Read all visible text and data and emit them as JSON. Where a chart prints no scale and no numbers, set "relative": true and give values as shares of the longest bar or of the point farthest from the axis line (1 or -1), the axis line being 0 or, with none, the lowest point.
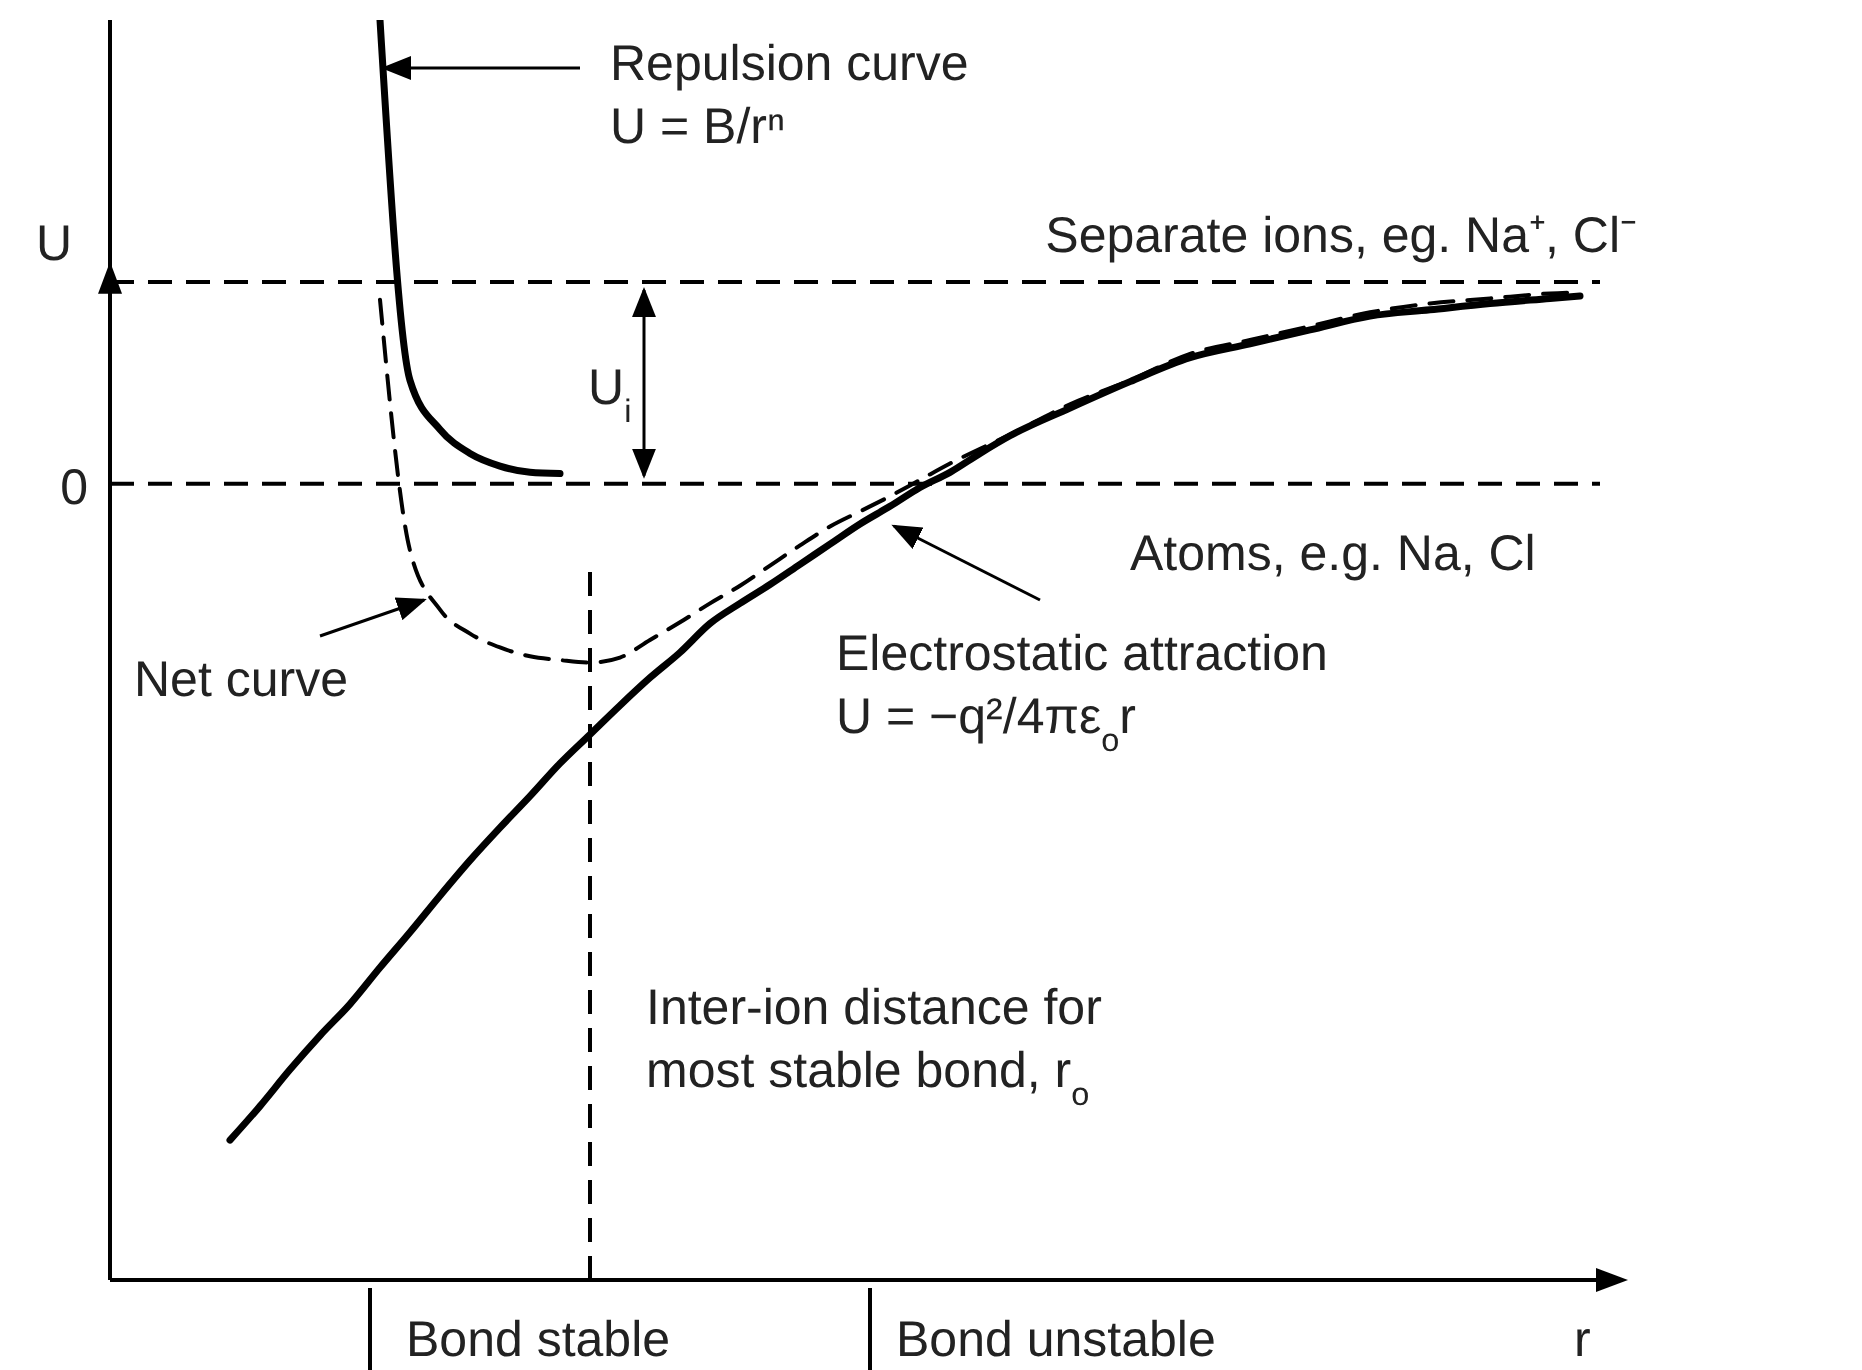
{
  "chart_data": {
    "type": "line",
    "relative": true,
    "xlabel": "r",
    "ylabel": "U",
    "marker": "none",
    "categories": [
      null,
      null,
      null,
      null,
      null,
      null,
      null,
      null,
      null,
      null,
      null,
      null,
      null,
      null,
      null,
      null,
      null,
      null,
      null,
      null,
      null,
      null,
      null,
      null,
      null,
      null,
      null,
      null,
      null,
      null,
      null,
      null,
      null,
      null,
      null,
      null,
      null,
      null,
      null,
      null,
      null,
      null,
      null,
      null,
      null,
      null,
      null,
      null,
      null,
      null
    ],
    "series": [
      {
        "color": "#000000",
        "line_style": "solid",
        "values": [
          null,
          null,
          null,
          null,
          null,
          null,
          null,
          null,
          null,
          1,
          0.714,
          0.675,
          0.656,
          0.646,
          0.641,
          0.64,
          null,
          null,
          null,
          null,
          null,
          null,
          null,
          null,
          null,
          null,
          null,
          null,
          null,
          null,
          null,
          null,
          null,
          null,
          null,
          null,
          null,
          null,
          null,
          null,
          null,
          null,
          null,
          null,
          null,
          null,
          null,
          null,
          null,
          null
        ]
      },
      {
        "color": "#000000",
        "line_style": "dashed",
        "values": [
          null,
          null,
          null,
          null,
          null,
          null,
          null,
          null,
          null,
          0.778,
          0.579,
          0.532,
          0.513,
          0.502,
          0.495,
          0.492,
          0.49,
          0.494,
          0.508,
          0.522,
          0.537,
          0.551,
          0.567,
          0.583,
          0.598,
          0.61,
          0.622,
          0.635,
          0.648,
          null,
          0.671,
          null,
          0.695,
          null,
          0.714,
          null,
          0.735,
          null,
          0.746,
          null,
          0.757,
          null,
          0.768,
          null,
          0.775,
          null,
          0.779,
          null,
          0.783,
          0.784
        ]
      },
      {
        "color": "#000000",
        "line_style": "solid",
        "values": [
          null,
          null,
          null,
          null,
          0.111,
          0.138,
          0.167,
          0.194,
          0.219,
          0.248,
          0.276,
          0.305,
          0.333,
          0.359,
          0.384,
          0.41,
          0.433,
          0.456,
          0.478,
          0.498,
          0.521,
          0.537,
          0.552,
          0.568,
          0.584,
          0.6,
          0.614,
          0.629,
          0.641,
          0.656,
          0.67,
          null,
          0.692,
          null,
          0.713,
          null,
          0.732,
          null,
          0.743,
          null,
          0.754,
          null,
          0.765,
          null,
          0.77,
          null,
          0.775,
          null,
          0.779,
          0.781
        ]
      }
    ],
    "ref_lines": [
      {
        "axis": "y",
        "value": 0.632,
        "line_style": "dashed",
        "color": "#000000"
      },
      {
        "axis": "y",
        "value": 0.792,
        "label": "Separate ions, eg. Na⁺, Cl⁻",
        "line_style": "dashed",
        "color": "#000000"
      }
    ],
    "annotations": [
      "Repulsion curve\nU = B/rⁿ",
      "Net curve",
      "Electrostatic attraction\nU = −q²/4πε$_{o}$r",
      "Atoms, e.g. Na, Cl",
      "U$_{i}$",
      "Bond stable",
      "Bond unstable",
      "0",
      "Inter-ion distance for\nmost stable bond, r$_{o}$"
    ]
  }
}
